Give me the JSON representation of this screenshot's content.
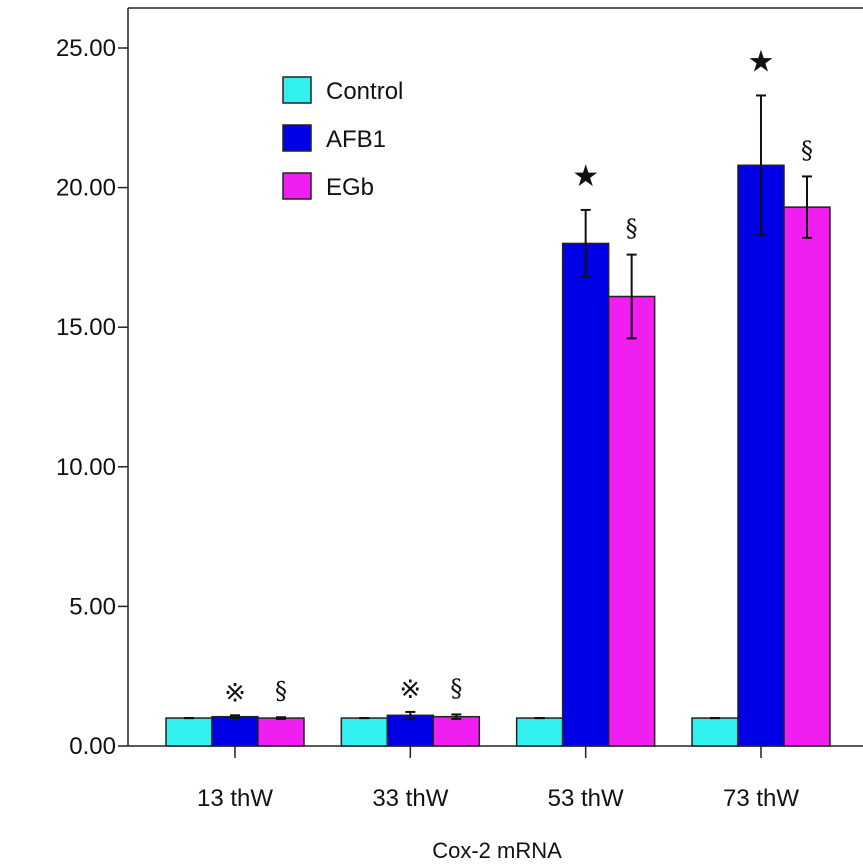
{
  "chart_data": {
    "type": "bar",
    "title": "",
    "xlabel": "Cox-2 mRNA",
    "ylabel": "",
    "ylim": [
      0,
      25
    ],
    "yticks": [
      0,
      5,
      10,
      15,
      20,
      25
    ],
    "ytick_labels": [
      "0.00",
      "5.00",
      "10.00",
      "15.00",
      "20.00",
      "25.00"
    ],
    "categories": [
      "13 thW",
      "33 thW",
      "53 thW",
      "73 thW"
    ],
    "series": [
      {
        "name": "Control",
        "color": "#33f0f0",
        "values": [
          1.0,
          1.0,
          1.0,
          1.0
        ],
        "errors": [
          0.0,
          0.0,
          0.0,
          0.0
        ]
      },
      {
        "name": "AFB1",
        "color": "#0000e6",
        "values": [
          1.05,
          1.1,
          18.0,
          20.8
        ],
        "errors": [
          0.05,
          0.12,
          1.2,
          2.5
        ]
      },
      {
        "name": "EGb",
        "color": "#f01ef0",
        "values": [
          1.0,
          1.05,
          16.1,
          19.3
        ],
        "errors": [
          0.03,
          0.08,
          1.5,
          1.1
        ]
      }
    ],
    "annotations": [
      {
        "category": 0,
        "series": 1,
        "symbol": "※"
      },
      {
        "category": 0,
        "series": 2,
        "symbol": "§"
      },
      {
        "category": 1,
        "series": 1,
        "symbol": "※"
      },
      {
        "category": 1,
        "series": 2,
        "symbol": "§"
      },
      {
        "category": 2,
        "series": 1,
        "symbol": "★"
      },
      {
        "category": 2,
        "series": 2,
        "symbol": "§"
      },
      {
        "category": 3,
        "series": 1,
        "symbol": "★"
      },
      {
        "category": 3,
        "series": 2,
        "symbol": "§"
      }
    ],
    "legend_position": "top-left",
    "grid": false
  }
}
